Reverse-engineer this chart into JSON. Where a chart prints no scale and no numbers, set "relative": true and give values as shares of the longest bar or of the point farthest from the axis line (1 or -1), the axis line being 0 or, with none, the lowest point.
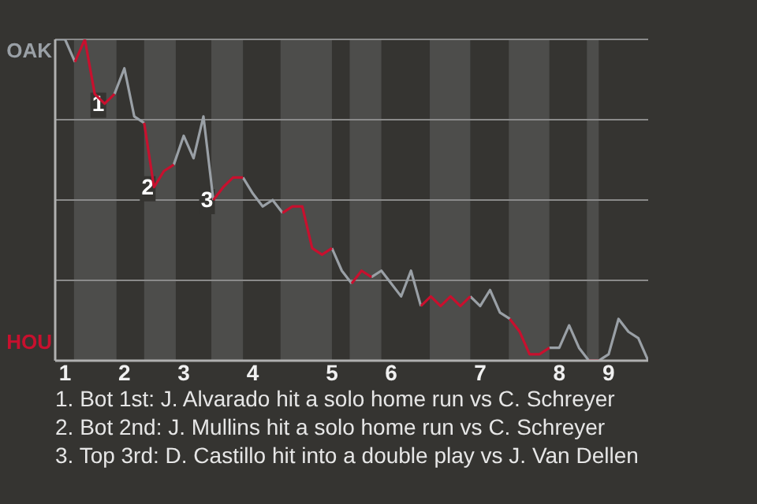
{
  "chart_data": {
    "type": "line",
    "relative": true,
    "categories": [
      null,
      "1",
      null,
      null,
      null,
      null,
      null,
      "2",
      null,
      null,
      null,
      null,
      null,
      "3",
      null,
      null,
      null,
      null,
      null,
      null,
      "4",
      null,
      null,
      null,
      null,
      null,
      null,
      null,
      "5",
      null,
      null,
      null,
      null,
      null,
      "6",
      null,
      null,
      null,
      null,
      null,
      null,
      null,
      null,
      "7",
      null,
      null,
      null,
      null,
      null,
      null,
      null,
      "8",
      null,
      null,
      null,
      null,
      "9",
      null,
      null,
      null,
      null
    ],
    "series": [
      {
        "name": "OAK",
        "color": "#9aa0a6",
        "values": [
          1,
          1,
          0.93,
          null,
          null,
          null,
          0.83,
          0.91,
          0.76,
          0.74,
          null,
          null,
          0.61,
          0.7,
          0.63,
          0.76,
          0.5,
          null,
          null,
          0.57,
          0.52,
          0.48,
          0.5,
          0.46,
          null,
          null,
          null,
          null,
          0.35,
          0.28,
          0.24,
          null,
          0.26,
          0.28,
          0.24,
          0.2,
          0.28,
          0.17,
          null,
          null,
          null,
          null,
          0.2,
          0.17,
          0.22,
          0.15,
          0.13,
          null,
          null,
          null,
          0.04,
          0.04,
          0.11,
          0.04,
          0,
          0,
          0.02,
          0.13,
          0.09,
          0.07,
          0
        ]
      },
      {
        "name": "HOU",
        "color": "#c8102e",
        "values": [
          null,
          null,
          0.93,
          1,
          0.83,
          0.8,
          0.83,
          null,
          null,
          0.74,
          0.54,
          0.59,
          0.61,
          null,
          null,
          null,
          0.5,
          0.54,
          0.57,
          0.57,
          null,
          null,
          null,
          0.46,
          0.48,
          0.48,
          0.35,
          0.33,
          0.35,
          null,
          0.24,
          0.28,
          0.26,
          null,
          null,
          null,
          null,
          0.17,
          0.2,
          0.17,
          0.2,
          0.17,
          0.2,
          null,
          null,
          null,
          0.13,
          0.09,
          0.02,
          0.02,
          0.04,
          null,
          null,
          null,
          0,
          0,
          null,
          null,
          null,
          null,
          null
        ]
      }
    ],
    "annotations": [
      {
        "text": "1",
        "y": 0.8
      },
      {
        "text": "2",
        "y": 0.54
      },
      {
        "text": "3",
        "y": 0.5
      },
      "1. Bot 1st: J. Alvarado hit a solo home run vs C. Schreyer",
      "2. Bot 2nd: J. Mullins hit a solo home run vs C. Schreyer",
      "3. Top 3rd: D. Castillo hit into a double play vs J. Van Dellen"
    ]
  }
}
